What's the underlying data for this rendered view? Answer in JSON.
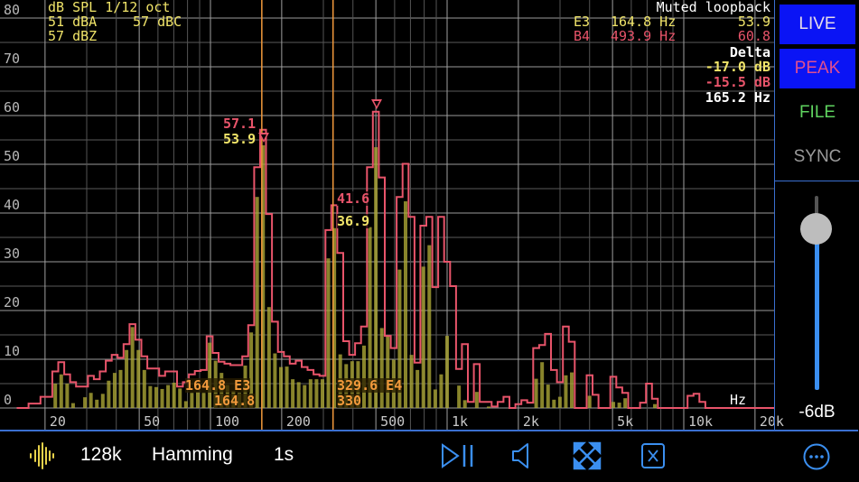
{
  "header": {
    "title": "dB SPL 1/12 oct",
    "dba": "51 dBA",
    "dbc": "57 dBC",
    "dbz": "57 dBZ",
    "source": "Muted loopback"
  },
  "markers": [
    {
      "note": "E3",
      "freq": "164.8 Hz",
      "level": "53.9",
      "color": "#f0e469"
    },
    {
      "note": "B4",
      "freq": "493.9 Hz",
      "level": "60.8",
      "color": "#e8546a"
    }
  ],
  "delta": {
    "label": "Delta",
    "live": "-17.0 dB",
    "peak": "-15.5 dB",
    "freq": "165.2 Hz"
  },
  "peak_labels": [
    {
      "peak": "57.1",
      "live": "53.9"
    },
    {
      "peak": "41.6",
      "live": "36.9"
    }
  ],
  "cursors": [
    {
      "freq_hz": 164.8,
      "label_top": "164.8 E3",
      "label_bottom": "164.8"
    },
    {
      "freq_hz": 329.6,
      "label_top": "329.6 E4",
      "label_bottom": "330"
    }
  ],
  "side_panel": {
    "live": "LIVE",
    "peak": "PEAK",
    "file": "FILE",
    "sync": "SYNC",
    "gain_label": "-6dB",
    "gain_slider_fraction": 0.83,
    "colors": {
      "button_bg": "#0a14f5",
      "live": "#e6dcea",
      "peak": "#e04f8f",
      "file": "#5fd35f",
      "sync": "#9a9a9a"
    }
  },
  "toolbar": {
    "waveform_icon": "waveform-icon",
    "sample_count": "128k",
    "window": "Hamming",
    "duration": "1s",
    "icons": [
      "play-pause-icon",
      "speaker-icon",
      "expand-icon",
      "clear-icon",
      "more-icon"
    ],
    "accent": "#3b8ff0"
  },
  "chart_data": {
    "type": "bar",
    "x_unit_label": "Hz",
    "x_scale": "log",
    "xlim": [
      15,
      22000
    ],
    "ylim": [
      0,
      80
    ],
    "y_ticks": [
      "0",
      "10",
      "20",
      "30",
      "40",
      "50",
      "60",
      "70",
      "80"
    ],
    "x_ticks": [
      {
        "hz": 20,
        "label": "20"
      },
      {
        "hz": 50,
        "label": "50"
      },
      {
        "hz": 100,
        "label": "100"
      },
      {
        "hz": 200,
        "label": "200"
      },
      {
        "hz": 500,
        "label": "500"
      },
      {
        "hz": 1000,
        "label": "1k"
      },
      {
        "hz": 2000,
        "label": "2k"
      },
      {
        "hz": 5000,
        "label": "5k"
      },
      {
        "hz": 10000,
        "label": "10k"
      },
      {
        "hz": 20000,
        "label": "20k"
      }
    ],
    "grid": true,
    "start_hz": 15.625,
    "bins_per_octave": 12,
    "series": [
      {
        "role": "live",
        "color": "#c8c040",
        "style": "bars",
        "values": [
          0,
          0,
          0,
          0,
          0,
          0,
          5,
          6.9,
          5,
          1,
          0,
          2.2,
          3.1,
          1.7,
          2.9,
          5.6,
          7.2,
          7.8,
          11.9,
          16.6,
          11.9,
          7.8,
          4.5,
          4.3,
          3.9,
          4.7,
          5.2,
          4,
          1.4,
          3.1,
          3.3,
          3.1,
          13.4,
          9.7,
          7.2,
          4.7,
          3.5,
          3.1,
          8.7,
          15.5,
          43.3,
          53.9,
          20.7,
          11.2,
          8.4,
          8.5,
          5.9,
          5.3,
          4.7,
          5.9,
          5.9,
          5.9,
          30.7,
          36.9,
          11,
          9,
          9.6,
          9.6,
          12.8,
          37.1,
          53.5,
          16.4,
          14.8,
          9.9,
          28.4,
          42.4,
          10.9,
          7.8,
          29,
          33.4,
          3.8,
          6.9,
          14.8,
          0,
          4.6,
          1.6,
          0,
          3.3,
          0,
          0.3,
          0,
          0,
          0,
          0,
          0,
          0,
          0,
          6,
          9.4,
          4.8,
          1.7,
          2.3,
          6.7,
          7.3,
          0,
          0,
          2.5,
          0,
          0,
          0,
          1.25,
          1.1,
          2,
          0,
          0,
          0,
          0,
          0.8,
          0,
          0,
          0,
          0,
          0,
          0,
          0,
          0,
          0,
          0,
          0,
          0,
          0,
          0,
          0,
          0,
          0,
          0,
          0
        ]
      },
      {
        "role": "peak",
        "color": "#e8546a",
        "style": "step",
        "values": [
          0,
          0,
          0.9,
          0.9,
          2.3,
          2.3,
          7.5,
          9.4,
          6.9,
          5.3,
          4.4,
          4.4,
          6.6,
          5.9,
          7.5,
          9.7,
          10.9,
          10.3,
          13.1,
          17.2,
          14,
          10.6,
          8.1,
          8.1,
          6.6,
          7.5,
          7.5,
          4.4,
          5.3,
          6.9,
          7.6,
          7.8,
          14.7,
          11.3,
          9.5,
          9.1,
          8.8,
          8.8,
          10.6,
          17,
          49.4,
          57.1,
          39.8,
          17.7,
          11.5,
          10.6,
          9.1,
          9.7,
          8.4,
          7.8,
          6.9,
          6.6,
          36.5,
          41.6,
          31.8,
          13.7,
          10.9,
          13.3,
          16.7,
          49.4,
          60.8,
          47.3,
          14.8,
          12.3,
          43.3,
          50.1,
          39.2,
          9.3,
          37.4,
          39.2,
          24.8,
          39.2,
          30,
          25,
          8,
          13.1,
          1.25,
          9,
          1.25,
          1.25,
          0.3,
          1.25,
          2.3,
          0,
          0.8,
          1.6,
          1.1,
          12.3,
          12.9,
          15.2,
          7.8,
          5.3,
          16.7,
          13.6,
          0,
          0,
          6.7,
          2.7,
          0,
          0,
          6.4,
          4.2,
          3.1,
          0,
          0,
          1.1,
          5,
          1.9,
          0,
          0,
          0,
          0,
          0,
          2.5,
          2.9,
          1.25,
          0,
          0,
          0,
          0,
          0,
          0,
          0,
          0,
          0,
          0,
          0
        ]
      }
    ]
  }
}
